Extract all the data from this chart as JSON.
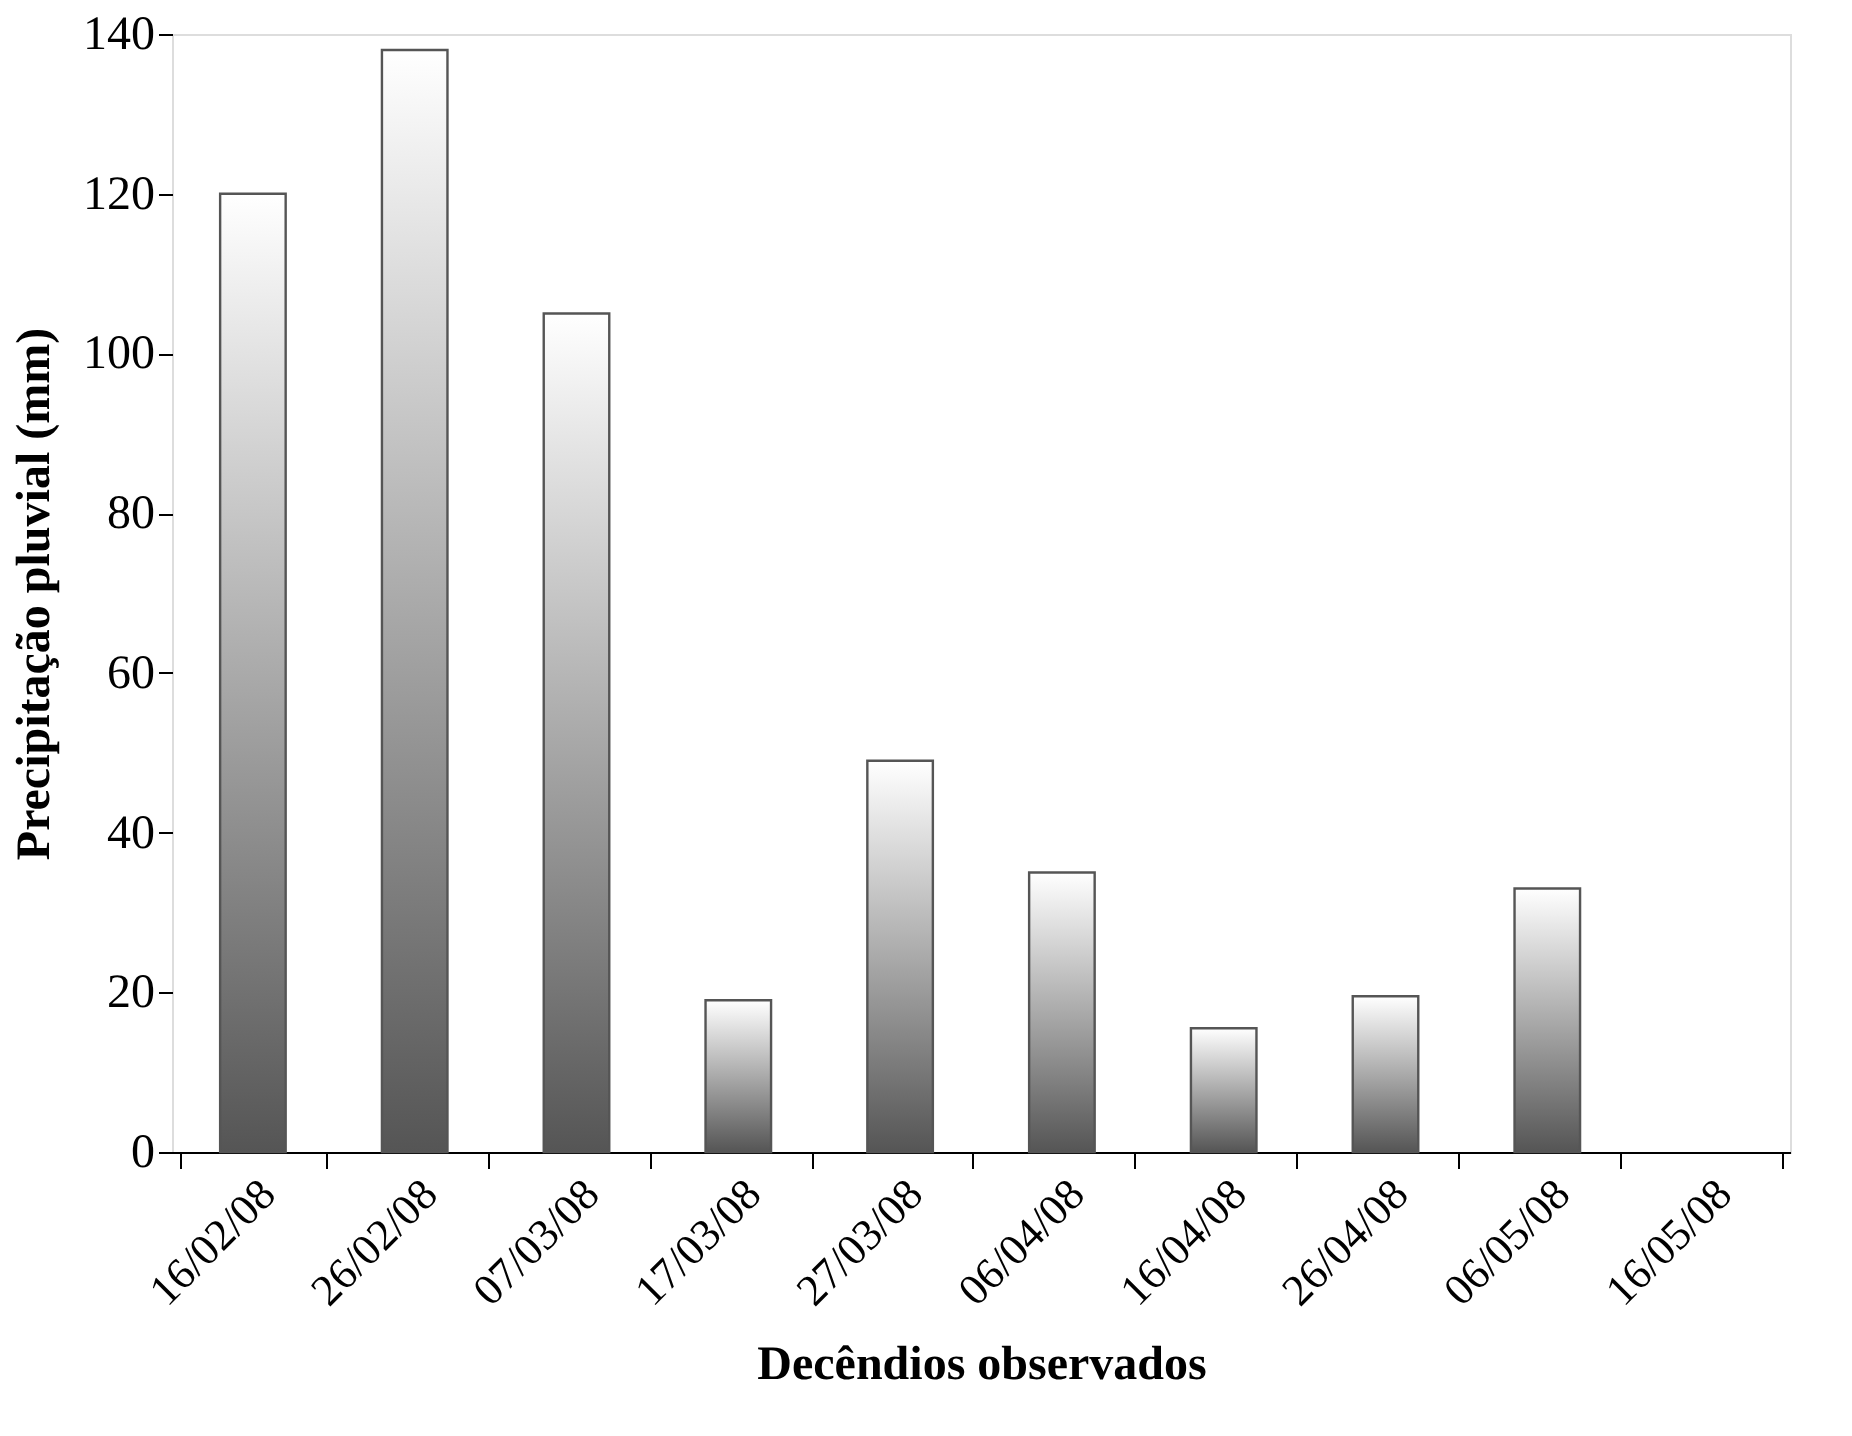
{
  "chart_data": {
    "type": "bar",
    "xlabel": "Decêndios observados",
    "ylabel": "Precipitação pluvial (mm)",
    "categories": [
      "16/02/08",
      "26/02/08",
      "07/03/08",
      "17/03/08",
      "27/03/08",
      "06/04/08",
      "16/04/08",
      "26/04/08",
      "06/05/08",
      "16/05/08"
    ],
    "values": [
      120,
      138,
      105,
      19,
      49,
      35,
      15.5,
      19.5,
      33,
      null
    ],
    "color": "#555555",
    "ylim": [
      0,
      140
    ],
    "yticks": [
      0,
      20,
      40,
      60,
      80,
      100,
      120,
      140
    ],
    "grid": false
  }
}
